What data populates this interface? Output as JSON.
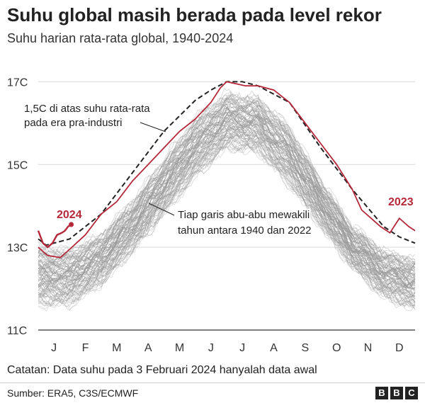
{
  "header": {
    "title": "Suhu global masih berada pada level rekor",
    "subtitle": "Suhu harian rata-rata global, 1940-2024"
  },
  "footer": {
    "note": "Catatan: Data suhu pada 3 Februari 2024 hanyalah data awal",
    "source": "Sumber: ERA5, C3S/ECMWF",
    "logo_letters": [
      "B",
      "B",
      "C"
    ]
  },
  "colors": {
    "record": "#b5283a",
    "history": "#999999",
    "baseline": "#222222",
    "grid": "#d9d9d9"
  },
  "chart_data": {
    "type": "line",
    "title": "Suhu harian rata-rata global, 1940-2024",
    "xlabel": "",
    "ylabel": "",
    "x_months": [
      "J",
      "F",
      "M",
      "A",
      "M",
      "J",
      "J",
      "A",
      "S",
      "O",
      "N",
      "D"
    ],
    "ylim": [
      11,
      17.4
    ],
    "y_ticks": [
      11,
      13,
      15,
      17
    ],
    "y_tick_labels": [
      "11C",
      "13C",
      "15C",
      "17C"
    ],
    "grid": true,
    "annotations": {
      "baseline_label": [
        "1,5C di atas suhu rata-rata",
        "pada era pra-industri"
      ],
      "history_label": [
        "Tiap garis abu-abu mewakili",
        "tahun antara 1940 dan 2022"
      ],
      "label_2023": "2023",
      "label_2024": "2024"
    },
    "history_band": {
      "name": "1940-2022",
      "x_month": [
        0.0,
        1.0,
        2.0,
        3.0,
        4.0,
        5.0,
        6.0,
        7.0,
        8.0,
        9.0,
        10.0,
        11.0,
        12.0
      ],
      "low": [
        11.6,
        11.6,
        12.1,
        12.9,
        13.8,
        14.7,
        15.4,
        15.3,
        14.5,
        13.5,
        12.5,
        11.8,
        11.5
      ],
      "high": [
        13.0,
        12.9,
        13.3,
        14.1,
        15.1,
        16.1,
        16.7,
        16.6,
        15.9,
        14.6,
        13.5,
        12.9,
        12.7
      ]
    },
    "series": [
      {
        "name": "1,5C di atas suhu rata-rata pada era pra-industri",
        "style": "dashed",
        "x_month": [
          0.0,
          0.25,
          1.0,
          2.0,
          3.0,
          4.0,
          5.0,
          5.5,
          6.0,
          6.5,
          7.0,
          8.0,
          9.0,
          10.0,
          11.0,
          11.5,
          12.0
        ],
        "values": [
          13.2,
          13.05,
          13.2,
          13.8,
          14.8,
          15.8,
          16.55,
          16.8,
          17.0,
          17.0,
          16.9,
          16.5,
          15.4,
          14.4,
          13.5,
          13.25,
          13.1
        ]
      },
      {
        "name": "2023",
        "style": "solid",
        "x_month": [
          0.0,
          0.3,
          0.7,
          1.0,
          1.5,
          2.0,
          2.5,
          3.0,
          3.5,
          4.0,
          4.5,
          5.0,
          5.5,
          5.8,
          6.0,
          6.3,
          6.6,
          7.0,
          7.5,
          8.0,
          8.5,
          9.0,
          9.5,
          10.0,
          10.3,
          10.6,
          10.9,
          11.2,
          11.5,
          11.8,
          12.0
        ],
        "values": [
          13.0,
          12.8,
          12.75,
          12.95,
          13.3,
          13.8,
          14.1,
          14.6,
          15.0,
          15.4,
          15.8,
          16.1,
          16.5,
          16.85,
          17.0,
          16.95,
          16.9,
          16.9,
          16.8,
          16.5,
          16.0,
          15.5,
          15.0,
          14.4,
          13.9,
          13.7,
          13.5,
          13.35,
          13.7,
          13.5,
          13.4
        ]
      },
      {
        "name": "2024",
        "style": "solid",
        "x_month": [
          0.0,
          0.15,
          0.3,
          0.45,
          0.6,
          0.75,
          0.85,
          0.95,
          1.05
        ],
        "values": [
          13.4,
          13.1,
          13.0,
          13.1,
          13.3,
          13.35,
          13.4,
          13.5,
          13.55
        ]
      }
    ]
  }
}
